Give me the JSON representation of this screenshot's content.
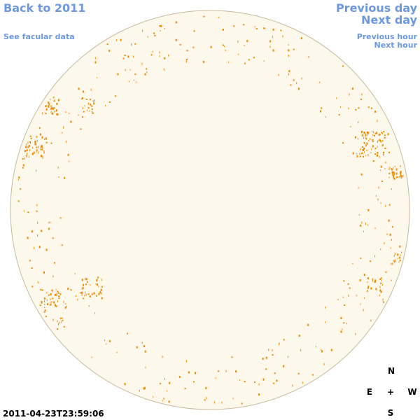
{
  "nav": {
    "back_year": "Back to 2011",
    "facular_data": "See facular data",
    "previous_day": "Previous day",
    "next_day": "Next day",
    "previous_hour": "Previous hour",
    "next_hour": "Next hour"
  },
  "timestamp": "2011-04-23T23:59:06",
  "compass": {
    "north": "N",
    "east": "E",
    "center": "+",
    "west": "W",
    "south": "S"
  }
}
